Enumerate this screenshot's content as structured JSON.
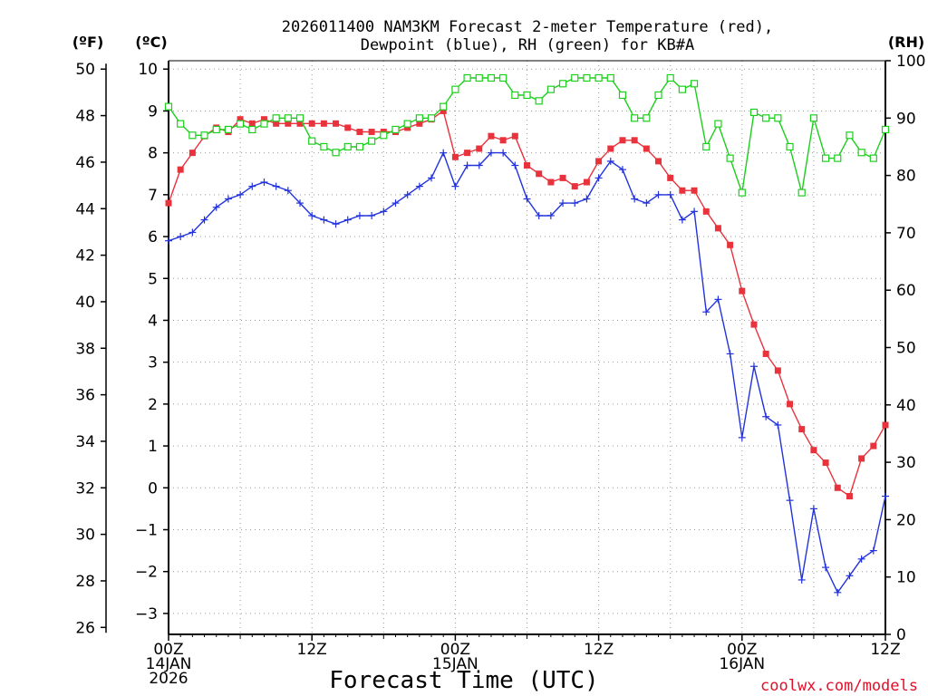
{
  "page": {
    "title_line1": "2026011400 NAM3KM Forecast 2-meter Temperature (red),",
    "title_line2": "Dewpoint (blue), RH (green) for KB#A",
    "unit_f": "(ºF)",
    "unit_c": "(ºC)",
    "unit_rh": "(RH)",
    "xlabel": "Forecast Time (UTC)",
    "credit": "coolwx.com/models"
  },
  "chart_data": {
    "type": "line",
    "title": "2026011400 NAM3KM Forecast 2-meter Temperature (red), Dewpoint (blue), RH (green) for KB#A",
    "xlabel": "Forecast Time (UTC)",
    "x_range_hours": [
      0,
      60
    ],
    "x_ticks": [
      {
        "hour": 0,
        "lines": [
          "00Z",
          "14JAN",
          "2026"
        ]
      },
      {
        "hour": 12,
        "lines": [
          "12Z"
        ]
      },
      {
        "hour": 24,
        "lines": [
          "00Z",
          "15JAN"
        ]
      },
      {
        "hour": 36,
        "lines": [
          "12Z"
        ]
      },
      {
        "hour": 48,
        "lines": [
          "00Z",
          "16JAN"
        ]
      },
      {
        "hour": 60,
        "lines": [
          "12Z"
        ]
      }
    ],
    "axes": {
      "celsius": {
        "label": "(ºC)",
        "range": [
          -3.5,
          10.2
        ],
        "ticks": [
          -3,
          -2,
          -1,
          0,
          1,
          2,
          3,
          4,
          5,
          6,
          7,
          8,
          9,
          10
        ]
      },
      "fahrenheit": {
        "label": "(ºF)",
        "ticks": [
          26,
          28,
          30,
          32,
          34,
          36,
          38,
          40,
          42,
          44,
          46,
          48,
          50
        ]
      },
      "rh": {
        "label": "(RH)",
        "range": [
          0,
          100
        ],
        "ticks": [
          0,
          10,
          20,
          30,
          40,
          50,
          60,
          70,
          80,
          90,
          100
        ]
      }
    },
    "grid": true,
    "hours": [
      0,
      1,
      2,
      3,
      4,
      5,
      6,
      7,
      8,
      9,
      10,
      11,
      12,
      13,
      14,
      15,
      16,
      17,
      18,
      19,
      20,
      21,
      22,
      23,
      24,
      25,
      26,
      27,
      28,
      29,
      30,
      31,
      32,
      33,
      34,
      35,
      36,
      37,
      38,
      39,
      40,
      41,
      42,
      43,
      44,
      45,
      46,
      47,
      48,
      49,
      50,
      51,
      52,
      53,
      54,
      55,
      56,
      57,
      58,
      59,
      60
    ],
    "series": [
      {
        "name": "Temperature",
        "units": "C",
        "color": "#e8323c",
        "marker": "filled-square",
        "values": [
          6.8,
          7.6,
          8.0,
          8.4,
          8.6,
          8.5,
          8.8,
          8.7,
          8.8,
          8.7,
          8.7,
          8.7,
          8.7,
          8.7,
          8.7,
          8.6,
          8.5,
          8.5,
          8.5,
          8.5,
          8.6,
          8.7,
          8.8,
          9.0,
          7.9,
          8.0,
          8.1,
          8.4,
          8.3,
          8.4,
          7.7,
          7.5,
          7.3,
          7.4,
          7.2,
          7.3,
          7.8,
          8.1,
          8.3,
          8.3,
          8.1,
          7.8,
          7.4,
          7.1,
          7.1,
          6.6,
          6.2,
          5.8,
          4.7,
          3.9,
          3.2,
          2.8,
          2.0,
          1.4,
          0.9,
          0.6,
          0.0,
          -0.2,
          0.7,
          1.0,
          1.5
        ]
      },
      {
        "name": "Dewpoint",
        "units": "C",
        "color": "#2233dd",
        "marker": "plus",
        "values": [
          5.9,
          6.0,
          6.1,
          6.4,
          6.7,
          6.9,
          7.0,
          7.2,
          7.3,
          7.2,
          7.1,
          6.8,
          6.5,
          6.4,
          6.3,
          6.4,
          6.5,
          6.5,
          6.6,
          6.8,
          7.0,
          7.2,
          7.4,
          8.0,
          7.2,
          7.7,
          7.7,
          8.0,
          8.0,
          7.7,
          6.9,
          6.5,
          6.5,
          6.8,
          6.8,
          6.9,
          7.4,
          7.8,
          7.6,
          6.9,
          6.8,
          7.0,
          7.0,
          6.4,
          6.6,
          4.2,
          4.5,
          3.2,
          1.2,
          2.9,
          1.7,
          1.5,
          -0.3,
          -2.2,
          -0.5,
          -1.9,
          -2.5,
          -2.1,
          -1.7,
          -1.5,
          -0.2
        ]
      },
      {
        "name": "RH",
        "units": "%",
        "color": "#1ccf1c",
        "marker": "open-square",
        "values": [
          92,
          89,
          87,
          87,
          88,
          88,
          89,
          88,
          89,
          90,
          90,
          90,
          86,
          85,
          84,
          85,
          85,
          86,
          87,
          88,
          89,
          90,
          90,
          92,
          95,
          97,
          97,
          97,
          97,
          94,
          94,
          93,
          95,
          96,
          97,
          97,
          97,
          97,
          94,
          90,
          90,
          94,
          97,
          95,
          96,
          85,
          89,
          83,
          77,
          91,
          90,
          90,
          85,
          77,
          90,
          83,
          83,
          87,
          84,
          83,
          88
        ]
      }
    ]
  }
}
